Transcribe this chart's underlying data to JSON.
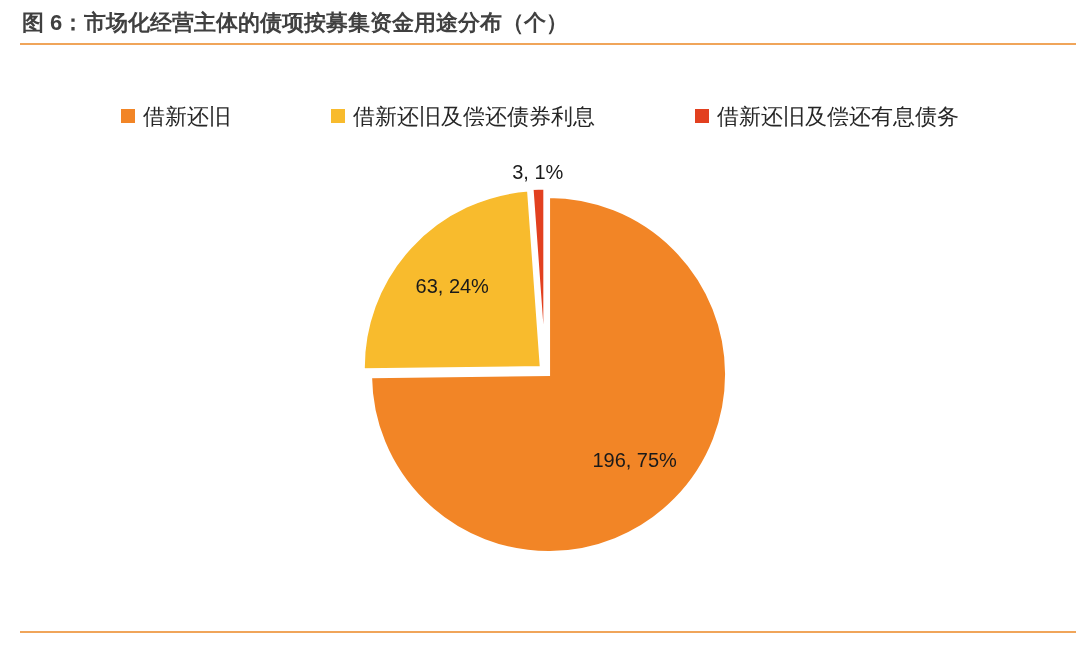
{
  "chart_data": {
    "type": "pie",
    "title": "图 6：市场化经营主体的债项按募集资金用途分布（个）",
    "categories": [
      "借新还旧",
      "借新还旧及偿还债券利息",
      "借新还旧及偿还有息债务"
    ],
    "values": [
      196,
      63,
      3
    ],
    "colors": [
      "#f28526",
      "#f8bb2d",
      "#e2401f"
    ],
    "value_labels": [
      "196, 75%",
      "63, 24%",
      "3, 1%"
    ],
    "legend": "top"
  }
}
